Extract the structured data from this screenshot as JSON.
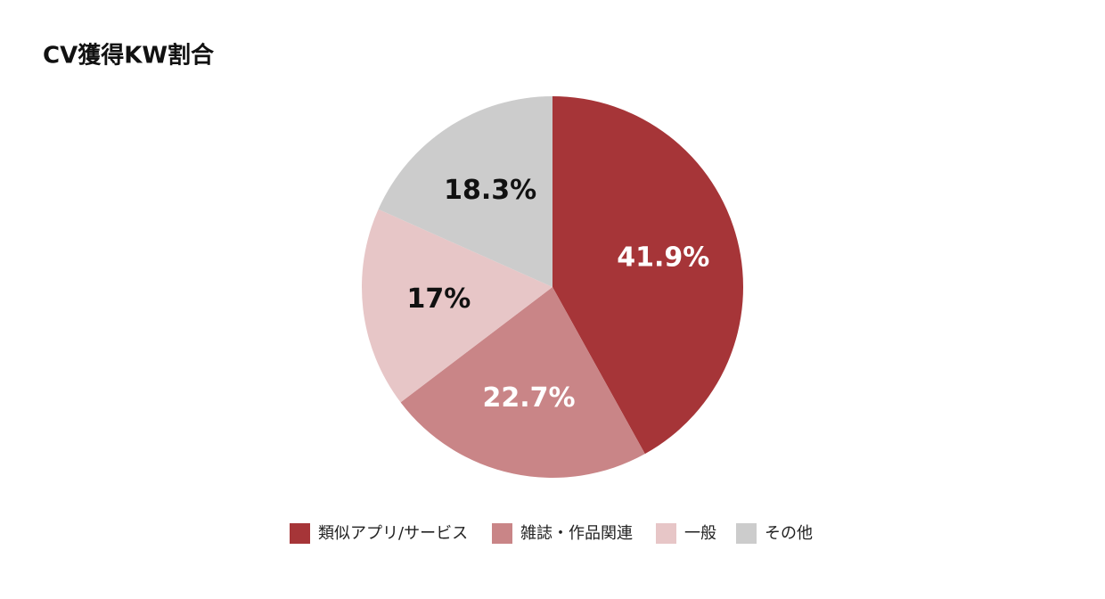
{
  "chart_data": {
    "type": "pie",
    "title": "CV獲得KW割合",
    "categories": [
      "類似アプリ/サービス",
      "雑誌・作品関連",
      "一般",
      "その他"
    ],
    "values": [
      41.9,
      22.7,
      17,
      18.3
    ],
    "value_labels": [
      "41.9%",
      "22.7%",
      "17%",
      "18.3%"
    ],
    "colors": [
      "#a63538",
      "#c98587",
      "#e7c6c7",
      "#cccccc"
    ],
    "legend": "bottom"
  }
}
